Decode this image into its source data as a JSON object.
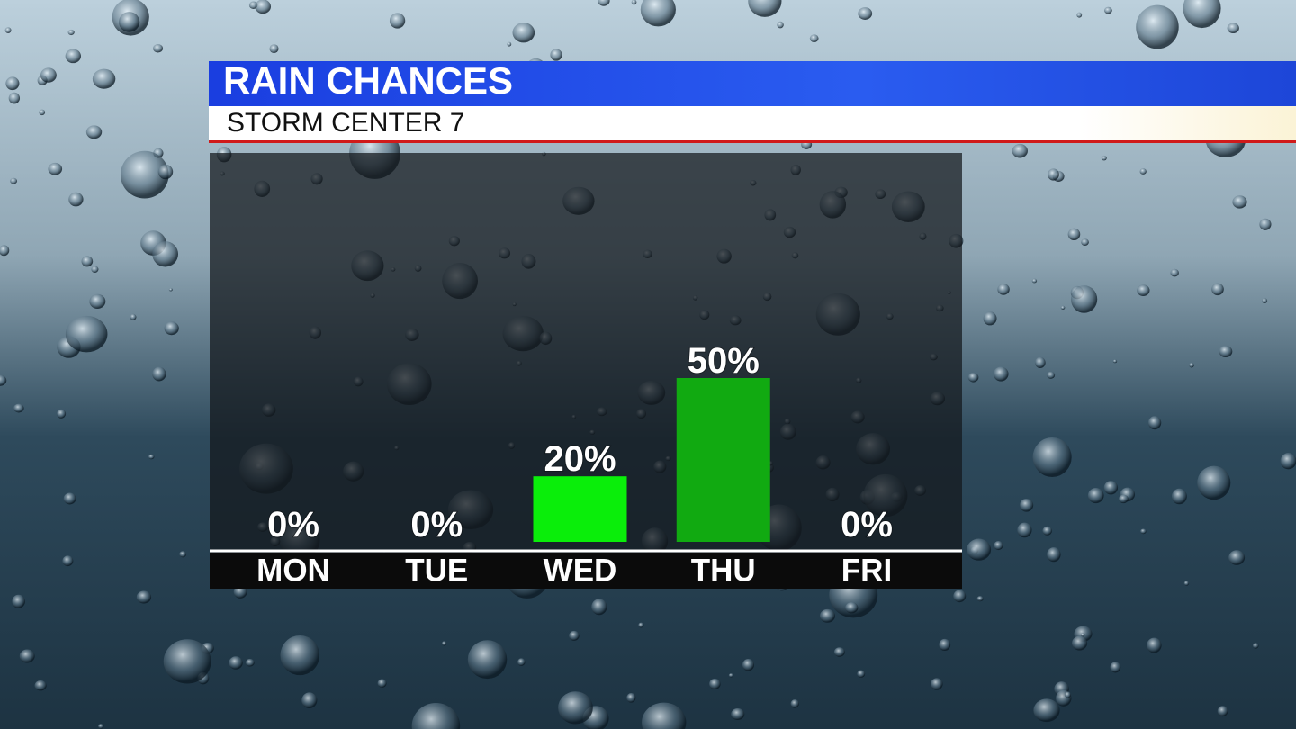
{
  "chart_data": {
    "type": "bar",
    "title": "RAIN CHANCES",
    "subtitle": "STORM CENTER 7",
    "categories": [
      "MON",
      "TUE",
      "WED",
      "THU",
      "FRI"
    ],
    "values": [
      0,
      0,
      20,
      50,
      0
    ],
    "value_labels": [
      "0%",
      "0%",
      "20%",
      "50%",
      "0%"
    ],
    "colors": [
      "#0aee0a",
      "#0aee0a",
      "#0aee0a",
      "#11aa11",
      "#0aee0a"
    ]
  }
}
